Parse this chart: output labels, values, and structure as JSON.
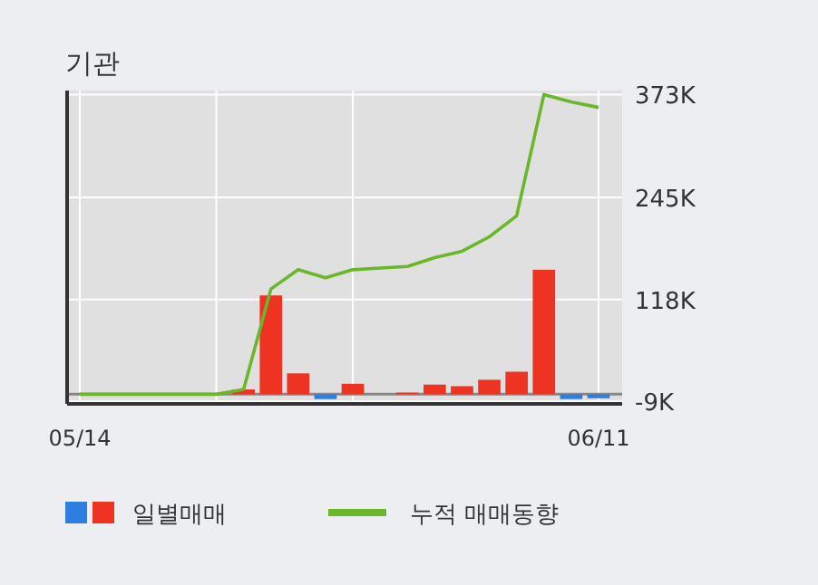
{
  "chart_data": {
    "type": "bar",
    "title": "기관",
    "categories": [
      "05/14",
      null,
      null,
      null,
      null,
      null,
      null,
      null,
      null,
      null,
      null,
      null,
      null,
      null,
      null,
      null,
      null,
      null,
      null,
      "06/11"
    ],
    "series": [
      {
        "name": "일별매매",
        "color": "#ee3322",
        "colors": [
          "#ee3322",
          "#ee3322",
          "#ee3322",
          "#ee3322",
          "#ee3322",
          "#ee3322",
          "#ee3322",
          "#ee3322",
          "#ee3322",
          "#2e7de0",
          "#ee3322",
          "#ee3322",
          "#ee3322",
          "#ee3322",
          "#ee3322",
          "#ee3322",
          "#ee3322",
          "#ee3322",
          "#2e7de0",
          "#2e7de0"
        ],
        "values": [
          0,
          0,
          0,
          0,
          0,
          0,
          6,
          123,
          26,
          -6,
          13,
          0,
          2,
          12,
          10,
          18,
          28,
          155,
          -6,
          -5
        ]
      },
      {
        "name": "누적 매매동향",
        "type": "line",
        "color": "#6ab82a",
        "values": [
          0,
          0,
          0,
          0,
          0,
          0,
          6,
          131,
          155,
          145,
          155,
          157,
          159,
          170,
          178,
          196,
          222,
          373,
          364,
          357
        ]
      }
    ],
    "ylim": [
      -12,
      378
    ],
    "yticks": [
      {
        "value": -9,
        "label": "-9K"
      },
      {
        "value": 118,
        "label": "118K"
      },
      {
        "value": 245,
        "label": "245K"
      },
      {
        "value": 373,
        "label": "373K"
      }
    ],
    "grid": true,
    "legend": "bottom"
  }
}
